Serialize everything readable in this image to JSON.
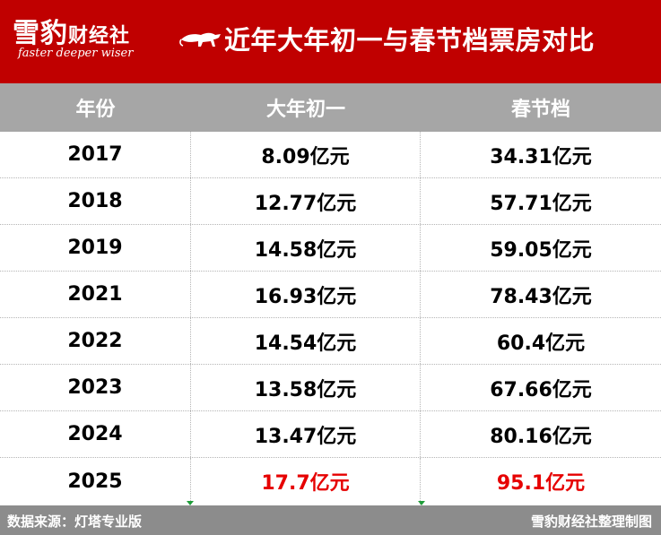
{
  "header": {
    "logo_cn": "雪豹",
    "logo_cn_small": "财经社",
    "logo_en": "faster deeper wiser",
    "title": "近年大年初一与春节档票房对比",
    "bg_color": "#c00000"
  },
  "table": {
    "columns": [
      "年份",
      "大年初一",
      "春节档"
    ],
    "rows": [
      {
        "year": "2017",
        "first_day": "8.09亿元",
        "festival": "34.31亿元"
      },
      {
        "year": "2018",
        "first_day": "12.77亿元",
        "festival": "57.71亿元"
      },
      {
        "year": "2019",
        "first_day": "14.58亿元",
        "festival": "59.05亿元"
      },
      {
        "year": "2021",
        "first_day": "16.93亿元",
        "festival": "78.43亿元"
      },
      {
        "year": "2022",
        "first_day": "14.54亿元",
        "festival": "60.4亿元"
      },
      {
        "year": "2023",
        "first_day": "13.58亿元",
        "festival": "67.66亿元"
      },
      {
        "year": "2024",
        "first_day": "13.47亿元",
        "festival": "80.16亿元"
      },
      {
        "year": "2025",
        "first_day": "17.7亿元",
        "festival": "95.1亿元"
      }
    ],
    "highlight_color": "#e60000"
  },
  "footer": {
    "source": "数据来源：灯塔专业版",
    "credit": "雪豹财经社整理制图"
  }
}
